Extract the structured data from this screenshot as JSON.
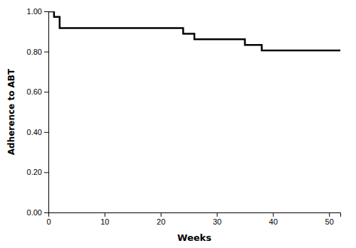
{
  "chart_data": {
    "type": "line",
    "x": [
      0,
      1,
      1,
      2,
      2,
      24,
      24,
      26,
      26,
      35,
      35,
      38,
      38,
      48,
      48,
      52
    ],
    "values": [
      1.0,
      1.0,
      0.9722,
      0.9722,
      0.9167,
      0.9167,
      0.8889,
      0.8889,
      0.8611,
      0.8611,
      0.8333,
      0.8333,
      0.8056,
      0.8056,
      0.8056,
      0.8056
    ],
    "color": "#000000",
    "xlabel": "Weeks",
    "ylabel": "Adherence to ABT",
    "xlim": [
      0,
      52
    ],
    "ylim": [
      0.0,
      1.0
    ],
    "xticks": [
      0,
      10,
      20,
      30,
      40,
      50
    ],
    "yticks": [
      {
        "value": 0.0,
        "label": "0.00"
      },
      {
        "value": 0.2,
        "label": "0.20"
      },
      {
        "value": 0.4,
        "label": "0.40"
      },
      {
        "value": 0.6,
        "label": "0.60"
      },
      {
        "value": 0.8,
        "label": "0.80"
      },
      {
        "value": 1.0,
        "label": "1.00"
      }
    ],
    "grid": false
  }
}
